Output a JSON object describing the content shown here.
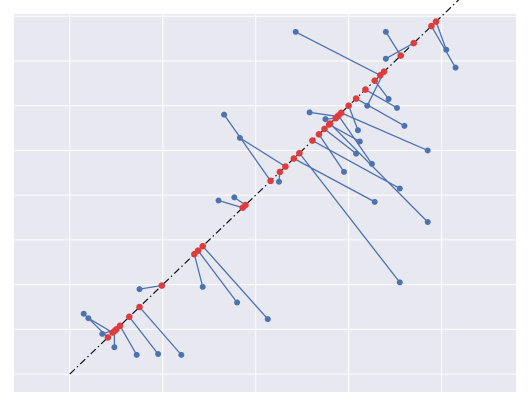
{
  "chart_data": {
    "type": "scatter",
    "title": "",
    "xlabel": "",
    "ylabel": "",
    "xlim": [
      -0.6,
      4.8
    ],
    "ylim": [
      -0.4,
      8.05
    ],
    "grid": true,
    "tick_labels_visible": false,
    "background_color": "#e8e8f0",
    "grid_color": "#ffffff",
    "colors": {
      "points": "#4c72b0",
      "segments": "#4c72b0",
      "projections": "#dd3c3c",
      "fit_line": "#111111"
    },
    "fit_line": {
      "slope": 2,
      "intercept": 0,
      "x_range": [
        0,
        4.2
      ],
      "style": "dash-dot"
    },
    "points": [
      {
        "x": 0.15,
        "y": 1.35,
        "px": 0.41,
        "py": 0.82
      },
      {
        "x": 0.2,
        "y": 1.25,
        "px": 0.46,
        "py": 0.93
      },
      {
        "x": 0.35,
        "y": 0.9,
        "px": 0.5,
        "py": 1.0
      },
      {
        "x": 0.48,
        "y": 0.6,
        "px": 0.48,
        "py": 0.96
      },
      {
        "x": 0.72,
        "y": 0.43,
        "px": 0.54,
        "py": 1.08
      },
      {
        "x": 0.95,
        "y": 0.45,
        "px": 0.64,
        "py": 1.28
      },
      {
        "x": 1.2,
        "y": 0.43,
        "px": 0.75,
        "py": 1.5
      },
      {
        "x": 0.75,
        "y": 1.9,
        "px": 0.99,
        "py": 1.98
      },
      {
        "x": 1.43,
        "y": 1.95,
        "px": 1.34,
        "py": 2.68
      },
      {
        "x": 1.8,
        "y": 1.6,
        "px": 1.38,
        "py": 2.76
      },
      {
        "x": 2.13,
        "y": 1.23,
        "px": 1.43,
        "py": 2.86
      },
      {
        "x": 1.6,
        "y": 3.88,
        "px": 1.86,
        "py": 3.72
      },
      {
        "x": 1.77,
        "y": 3.95,
        "px": 1.89,
        "py": 3.78
      },
      {
        "x": 1.66,
        "y": 5.8,
        "px": 2.16,
        "py": 4.32
      },
      {
        "x": 1.83,
        "y": 5.28,
        "px": 2.32,
        "py": 4.64
      },
      {
        "x": 2.25,
        "y": 4.3,
        "px": 2.26,
        "py": 4.52
      },
      {
        "x": 2.75,
        "y": 5.7,
        "px": 2.86,
        "py": 5.72
      },
      {
        "x": 2.58,
        "y": 5.85,
        "px": 2.88,
        "py": 5.76
      },
      {
        "x": 3.2,
        "y": 6.0,
        "px": 3.38,
        "py": 6.76
      },
      {
        "x": 2.43,
        "y": 7.65,
        "px": 3.34,
        "py": 6.68
      },
      {
        "x": 4.15,
        "y": 6.85,
        "px": 3.89,
        "py": 7.78
      },
      {
        "x": 3.4,
        "y": 7.65,
        "px": 3.56,
        "py": 7.12
      },
      {
        "x": 3.4,
        "y": 7.05,
        "px": 3.7,
        "py": 7.4
      },
      {
        "x": 3.43,
        "y": 6.15,
        "px": 3.28,
        "py": 6.56
      },
      {
        "x": 3.52,
        "y": 5.95,
        "px": 3.18,
        "py": 6.36
      },
      {
        "x": 3.1,
        "y": 5.45,
        "px": 3.0,
        "py": 6.0
      },
      {
        "x": 3.08,
        "y": 4.93,
        "px": 2.74,
        "py": 5.48
      },
      {
        "x": 2.95,
        "y": 4.52,
        "px": 2.68,
        "py": 5.36
      },
      {
        "x": 3.55,
        "y": 4.15,
        "px": 2.61,
        "py": 5.22
      },
      {
        "x": 3.28,
        "y": 3.85,
        "px": 2.41,
        "py": 4.82
      },
      {
        "x": 3.85,
        "y": 3.4,
        "px": 2.8,
        "py": 5.6
      },
      {
        "x": 3.25,
        "y": 4.7,
        "px": 2.89,
        "py": 5.78
      },
      {
        "x": 3.55,
        "y": 2.05,
        "px": 2.47,
        "py": 4.94
      },
      {
        "x": 3.12,
        "y": 5.2,
        "px": 2.79,
        "py": 5.58
      },
      {
        "x": 4.05,
        "y": 7.25,
        "px": 3.94,
        "py": 7.88
      },
      {
        "x": 3.85,
        "y": 5.0,
        "px": 2.92,
        "py": 5.84
      },
      {
        "x": 3.6,
        "y": 5.55,
        "px": 3.08,
        "py": 6.16
      }
    ]
  }
}
